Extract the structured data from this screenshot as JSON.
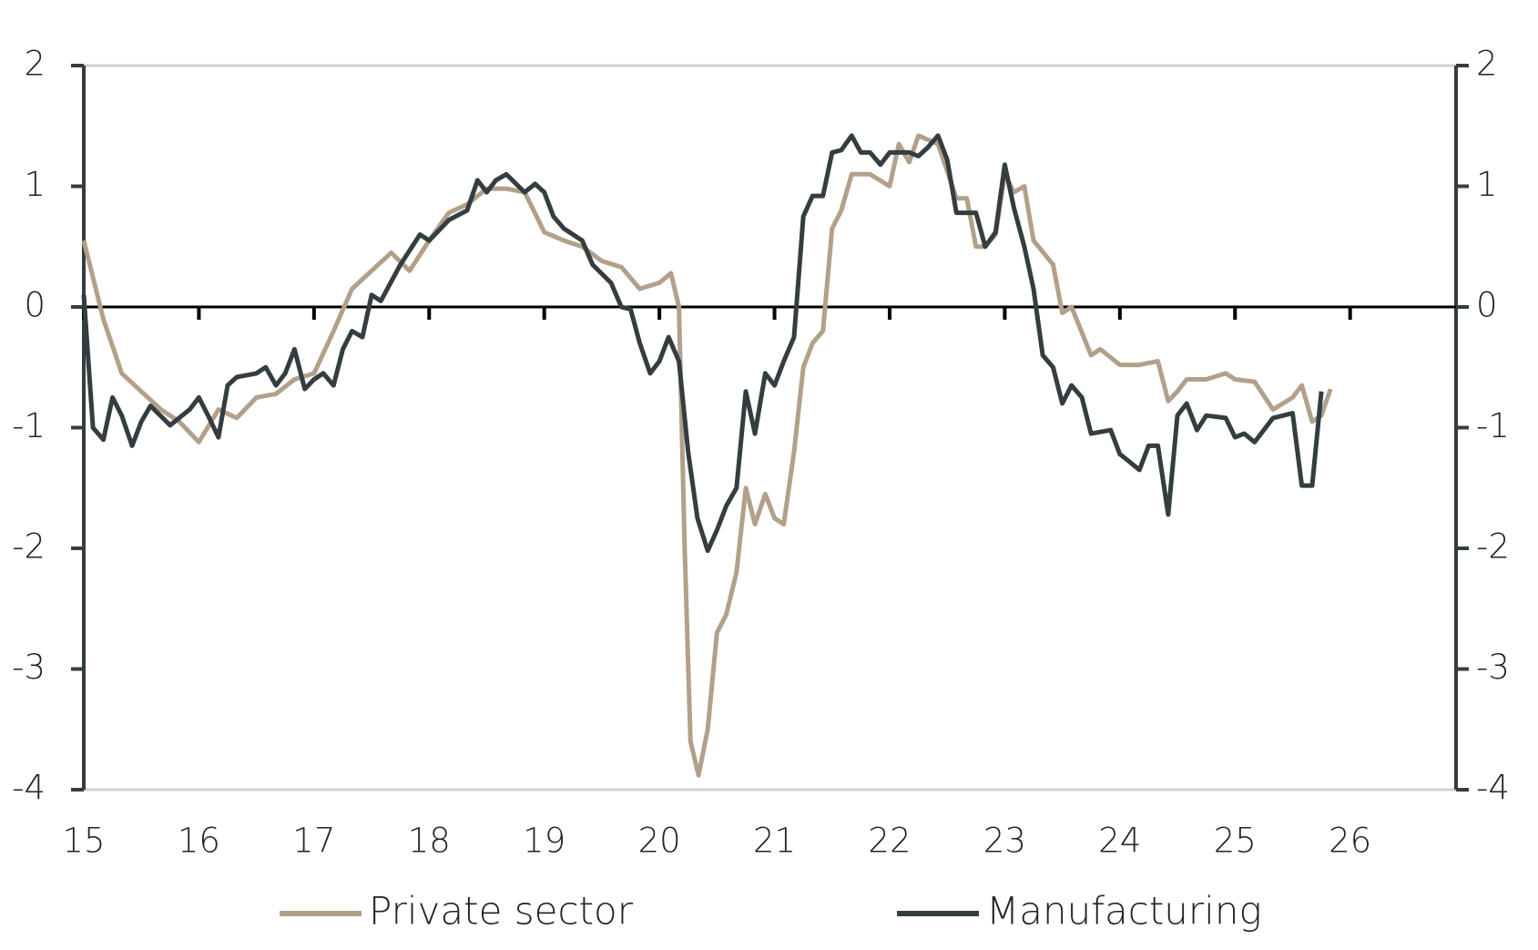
{
  "chart_data": {
    "type": "line",
    "xlim": [
      15,
      26.92
    ],
    "xticks": [
      15,
      16,
      17,
      18,
      19,
      20,
      21,
      22,
      23,
      24,
      25,
      26
    ],
    "ylim": [
      -4,
      2
    ],
    "yticks": [
      2,
      1,
      0,
      -1,
      -2,
      -3,
      -4
    ],
    "y2lim": [
      -4,
      2
    ],
    "y2ticks": [
      2,
      1,
      0,
      -1,
      -2,
      -3,
      -4
    ],
    "legend": "bottom",
    "series": [
      {
        "name": "Private sector",
        "color": "#b3a08a",
        "x": [
          15.0,
          15.17,
          15.33,
          15.5,
          15.67,
          15.83,
          16.0,
          16.17,
          16.33,
          16.5,
          16.67,
          16.83,
          17.0,
          17.17,
          17.33,
          17.5,
          17.67,
          17.83,
          18.0,
          18.17,
          18.33,
          18.5,
          18.67,
          18.83,
          19.0,
          19.17,
          19.33,
          19.5,
          19.67,
          19.83,
          20.0,
          20.1,
          20.17,
          20.22,
          20.27,
          20.34,
          20.42,
          20.5,
          20.58,
          20.67,
          20.75,
          20.83,
          20.92,
          21.0,
          21.08,
          21.17,
          21.25,
          21.33,
          21.42,
          21.5,
          21.58,
          21.67,
          21.83,
          22.0,
          22.08,
          22.17,
          22.25,
          22.42,
          22.58,
          22.67,
          22.75,
          22.83,
          22.92,
          23.0,
          23.08,
          23.17,
          23.25,
          23.42,
          23.5,
          23.58,
          23.75,
          23.83,
          24.0,
          24.17,
          24.33,
          24.42,
          24.5,
          24.58,
          24.75,
          24.92,
          25.0,
          25.17,
          25.33,
          25.5,
          25.58,
          25.67,
          25.75,
          25.83
        ],
        "values": [
          0.55,
          -0.1,
          -0.55,
          -0.7,
          -0.85,
          -0.95,
          -1.12,
          -0.85,
          -0.92,
          -0.75,
          -0.72,
          -0.6,
          -0.55,
          -0.2,
          0.15,
          0.3,
          0.45,
          0.3,
          0.55,
          0.78,
          0.85,
          0.98,
          0.98,
          0.95,
          0.62,
          0.55,
          0.5,
          0.38,
          0.33,
          0.15,
          0.2,
          0.28,
          0.0,
          -2.0,
          -3.6,
          -3.88,
          -3.5,
          -2.7,
          -2.55,
          -2.2,
          -1.5,
          -1.8,
          -1.55,
          -1.75,
          -1.8,
          -1.2,
          -0.5,
          -0.3,
          -0.2,
          0.65,
          0.8,
          1.1,
          1.1,
          1.0,
          1.35,
          1.2,
          1.42,
          1.35,
          0.9,
          0.9,
          0.5,
          0.5,
          0.6,
          1.1,
          0.95,
          1.0,
          0.55,
          0.35,
          -0.05,
          0.0,
          -0.4,
          -0.35,
          -0.48,
          -0.48,
          -0.45,
          -0.78,
          -0.7,
          -0.6,
          -0.6,
          -0.55,
          -0.6,
          -0.62,
          -0.85,
          -0.75,
          -0.65,
          -0.95,
          -0.9,
          -0.68
        ]
      },
      {
        "name": "Manufacturing",
        "color": "#343d3f",
        "x": [
          15.0,
          15.08,
          15.17,
          15.25,
          15.33,
          15.42,
          15.5,
          15.58,
          15.75,
          15.92,
          16.0,
          16.08,
          16.17,
          16.25,
          16.33,
          16.5,
          16.58,
          16.67,
          16.75,
          16.83,
          16.92,
          17.0,
          17.08,
          17.17,
          17.25,
          17.33,
          17.42,
          17.5,
          17.58,
          17.75,
          17.92,
          18.0,
          18.17,
          18.33,
          18.42,
          18.5,
          18.58,
          18.67,
          18.83,
          18.92,
          19.0,
          19.08,
          19.17,
          19.33,
          19.42,
          19.58,
          19.67,
          19.75,
          19.83,
          19.92,
          20.0,
          20.08,
          20.17,
          20.25,
          20.33,
          20.42,
          20.5,
          20.58,
          20.67,
          20.75,
          20.83,
          20.92,
          21.0,
          21.08,
          21.17,
          21.25,
          21.33,
          21.42,
          21.5,
          21.58,
          21.67,
          21.75,
          21.83,
          21.92,
          22.0,
          22.17,
          22.25,
          22.33,
          22.42,
          22.5,
          22.58,
          22.75,
          22.83,
          22.92,
          23.0,
          23.08,
          23.17,
          23.25,
          23.33,
          23.42,
          23.5,
          23.58,
          23.67,
          23.75,
          23.92,
          24.0,
          24.08,
          24.17,
          24.25,
          24.33,
          24.42,
          24.5,
          24.58,
          24.67,
          24.75,
          24.92,
          25.0,
          25.08,
          25.17,
          25.33,
          25.42,
          25.5,
          25.58,
          25.67,
          25.75
        ],
        "values": [
          0.1,
          -1.0,
          -1.1,
          -0.75,
          -0.9,
          -1.15,
          -0.95,
          -0.82,
          -0.98,
          -0.85,
          -0.75,
          -0.9,
          -1.08,
          -0.65,
          -0.58,
          -0.55,
          -0.5,
          -0.65,
          -0.55,
          -0.35,
          -0.68,
          -0.6,
          -0.55,
          -0.65,
          -0.35,
          -0.2,
          -0.25,
          0.1,
          0.05,
          0.35,
          0.6,
          0.55,
          0.72,
          0.8,
          1.05,
          0.95,
          1.05,
          1.1,
          0.95,
          1.02,
          0.95,
          0.75,
          0.65,
          0.55,
          0.35,
          0.2,
          0.0,
          -0.02,
          -0.3,
          -0.55,
          -0.45,
          -0.25,
          -0.45,
          -1.2,
          -1.75,
          -2.02,
          -1.85,
          -1.65,
          -1.5,
          -0.7,
          -1.05,
          -0.55,
          -0.65,
          -0.45,
          -0.25,
          0.75,
          0.92,
          0.92,
          1.28,
          1.3,
          1.42,
          1.28,
          1.28,
          1.18,
          1.28,
          1.28,
          1.25,
          1.32,
          1.42,
          1.22,
          0.78,
          0.78,
          0.5,
          0.62,
          1.18,
          0.82,
          0.5,
          0.15,
          -0.4,
          -0.5,
          -0.8,
          -0.65,
          -0.75,
          -1.05,
          -1.02,
          -1.22,
          -1.28,
          -1.35,
          -1.15,
          -1.15,
          -1.72,
          -0.9,
          -0.8,
          -1.02,
          -0.9,
          -0.92,
          -1.08,
          -1.05,
          -1.12,
          -0.92,
          -0.9,
          -0.88,
          -1.48,
          -1.48,
          -0.7
        ]
      }
    ]
  }
}
